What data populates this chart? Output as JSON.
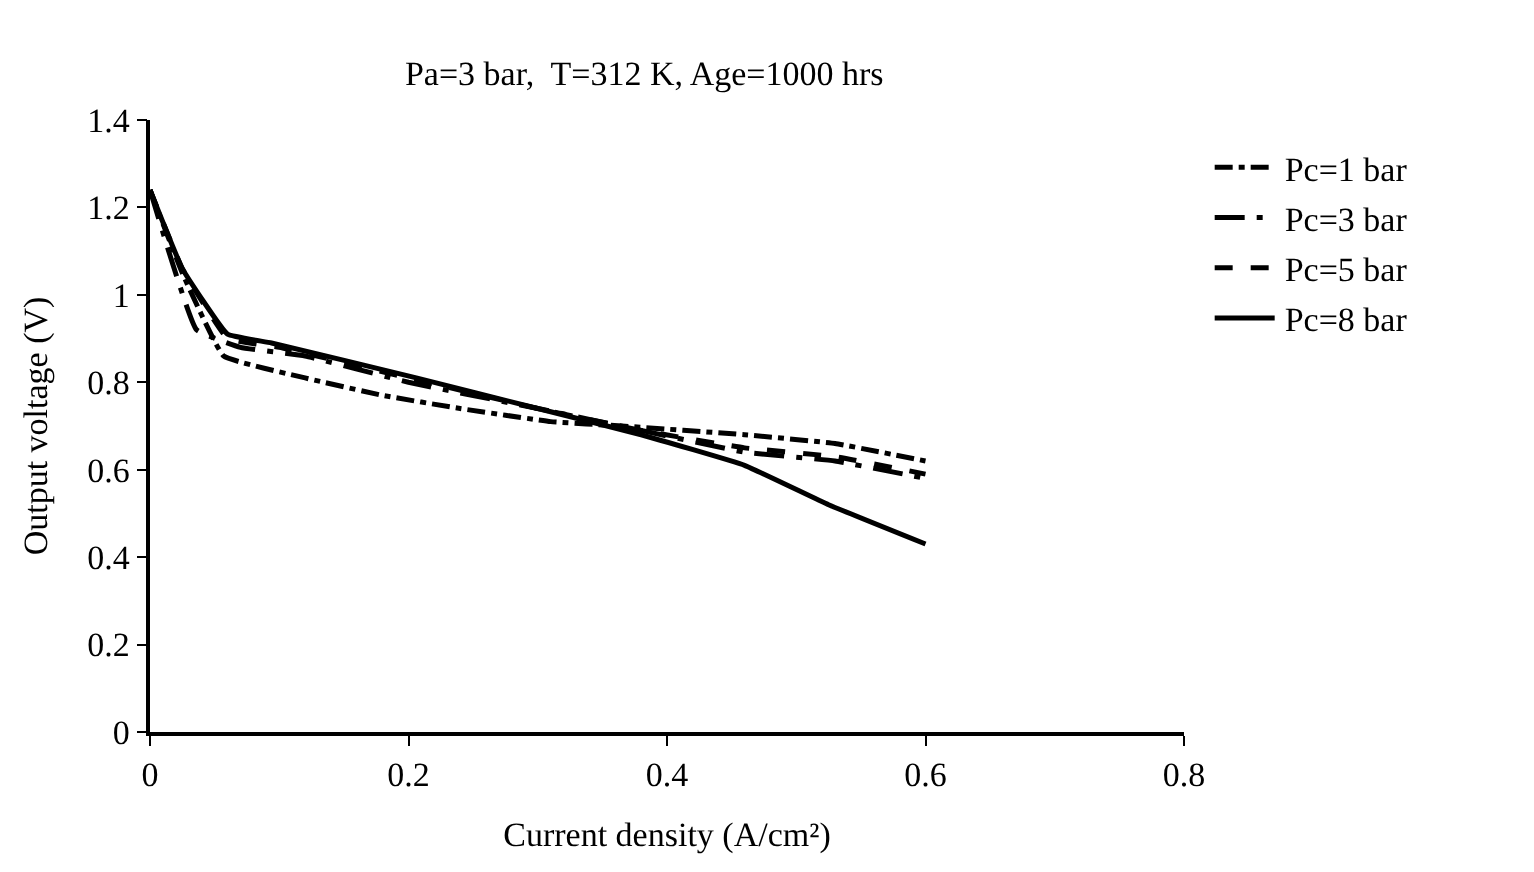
{
  "chart_data": {
    "type": "line",
    "title": "Pa=3 bar,  T=312 K, Age=1000 hrs",
    "xlabel": "Current density (A/cm²)",
    "ylabel": "Output voltage (V)",
    "xlim": [
      0,
      0.8
    ],
    "xticks": [
      0,
      0.2,
      0.4,
      0.6,
      0.8
    ],
    "ylim": [
      0,
      1.4
    ],
    "yticks": [
      0,
      0.2,
      0.4,
      0.6,
      0.8,
      1,
      1.2,
      1.4
    ],
    "legend": "top right",
    "marker": "none",
    "series": [
      {
        "name": "Pc=1 bar",
        "color": "#000000",
        "line_style": "dashdot",
        "x": [
          0,
          0.025,
          0.057,
          0.12,
          0.18,
          0.24,
          0.31,
          0.365,
          0.46,
          0.53,
          0.6
        ],
        "values": [
          1.24,
          1.05,
          0.86,
          0.81,
          0.77,
          0.74,
          0.71,
          0.7,
          0.68,
          0.66,
          0.62
        ]
      },
      {
        "name": "Pc=3 bar",
        "color": "#000000",
        "line_style": "longdashdot",
        "x": [
          0,
          0.036,
          0.07,
          0.12,
          0.2,
          0.3,
          0.38,
          0.46,
          0.53,
          0.6
        ],
        "values": [
          1.24,
          0.92,
          0.88,
          0.86,
          0.8,
          0.74,
          0.69,
          0.64,
          0.62,
          0.58
        ]
      },
      {
        "name": "Pc=5 bar",
        "color": "#000000",
        "line_style": "dashed",
        "x": [
          0,
          0.025,
          0.06,
          0.1,
          0.2,
          0.3,
          0.38,
          0.46,
          0.53,
          0.6
        ],
        "values": [
          1.24,
          1.06,
          0.9,
          0.88,
          0.81,
          0.74,
          0.69,
          0.65,
          0.63,
          0.59
        ]
      },
      {
        "name": "Pc=8 bar",
        "color": "#000000",
        "line_style": "solid",
        "x": [
          0,
          0.025,
          0.06,
          0.094,
          0.206,
          0.3,
          0.38,
          0.46,
          0.525,
          0.6
        ],
        "values": [
          1.24,
          1.06,
          0.91,
          0.89,
          0.81,
          0.74,
          0.68,
          0.61,
          0.52,
          0.43
        ]
      }
    ]
  }
}
